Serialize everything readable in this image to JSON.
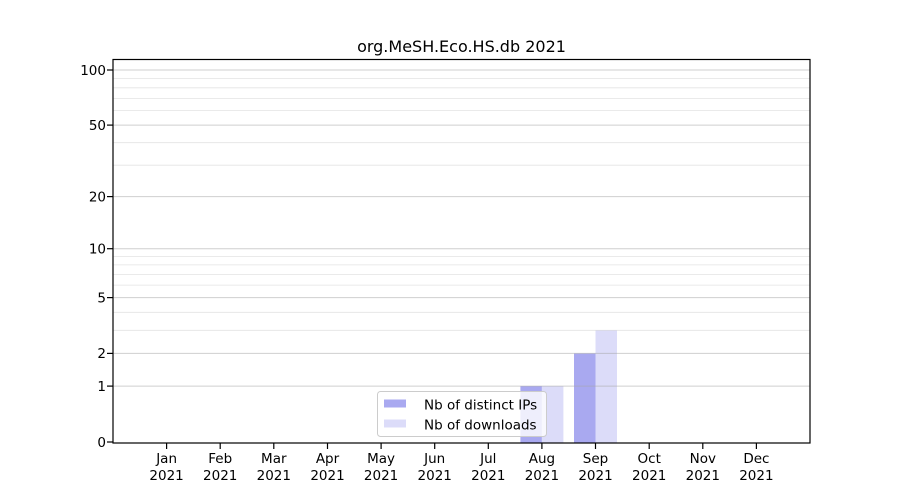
{
  "chart_data": {
    "type": "bar",
    "title": "org.MeSH.Eco.HS.db 2021",
    "year": "2021",
    "months": [
      "Jan",
      "Feb",
      "Mar",
      "Apr",
      "May",
      "Jun",
      "Jul",
      "Aug",
      "Sep",
      "Oct",
      "Nov",
      "Dec"
    ],
    "categories": [
      "Jan 2021",
      "Feb 2021",
      "Mar 2021",
      "Apr 2021",
      "May 2021",
      "Jun 2021",
      "Jul 2021",
      "Aug 2021",
      "Sep 2021",
      "Oct 2021",
      "Nov 2021",
      "Dec 2021"
    ],
    "series": [
      {
        "name": "Nb of distinct IPs",
        "color": "#a9a9f0",
        "values": [
          0,
          0,
          0,
          0,
          0,
          0,
          0,
          1,
          2,
          0,
          0,
          0
        ]
      },
      {
        "name": "Nb of downloads",
        "color": "#dcdcf9",
        "values": [
          0,
          0,
          0,
          0,
          0,
          0,
          0,
          1,
          3,
          0,
          0,
          0
        ]
      }
    ],
    "xlabel": "",
    "ylabel": "",
    "y_scale": "log1p",
    "y_major_ticks": [
      0,
      1,
      2,
      5,
      10,
      20,
      50,
      100
    ],
    "y_minor_ticks": [
      3,
      4,
      6,
      7,
      8,
      9,
      30,
      40,
      60,
      70,
      80,
      90
    ],
    "ylim": [
      0,
      114
    ],
    "grid": "on",
    "legend_position": "lower center"
  },
  "colors": {
    "background": "#ffffff",
    "grid_major": "#a8a8a8",
    "grid_minor": "#c8c8c8",
    "axis": "#000000",
    "text": "#000000",
    "legend_border": "#cccccc",
    "legend_background": "#ffffff"
  }
}
